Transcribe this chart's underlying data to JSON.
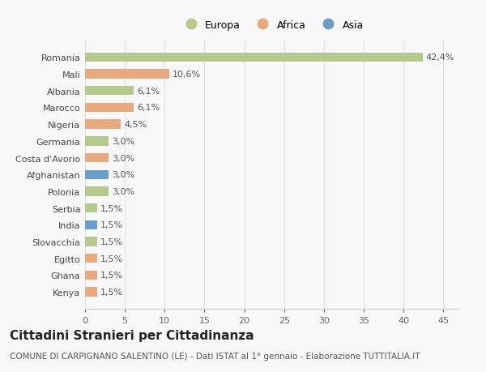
{
  "countries": [
    "Kenya",
    "Ghana",
    "Egitto",
    "Slovacchia",
    "India",
    "Serbia",
    "Polonia",
    "Afghanistan",
    "Costa d'Avorio",
    "Germania",
    "Nigeria",
    "Marocco",
    "Albania",
    "Mali",
    "Romania"
  ],
  "values": [
    1.5,
    1.5,
    1.5,
    1.5,
    1.5,
    1.5,
    3.0,
    3.0,
    3.0,
    3.0,
    4.5,
    6.1,
    6.1,
    10.6,
    42.4
  ],
  "labels": [
    "1,5%",
    "1,5%",
    "1,5%",
    "1,5%",
    "1,5%",
    "1,5%",
    "3,0%",
    "3,0%",
    "3,0%",
    "3,0%",
    "4,5%",
    "6,1%",
    "6,1%",
    "10,6%",
    "42,4%"
  ],
  "continents": [
    "Africa",
    "Africa",
    "Africa",
    "Europa",
    "Asia",
    "Europa",
    "Europa",
    "Asia",
    "Africa",
    "Europa",
    "Africa",
    "Africa",
    "Europa",
    "Africa",
    "Europa"
  ],
  "continent_colors": {
    "Europa": "#b5c98e",
    "Africa": "#e8a97e",
    "Asia": "#6a9ec9"
  },
  "legend_labels": [
    "Europa",
    "Africa",
    "Asia"
  ],
  "title": "Cittadini Stranieri per Cittadinanza",
  "subtitle": "COMUNE DI CARPIGNANO SALENTINO (LE) - Dati ISTAT al 1° gennaio - Elaborazione TUTTITALIA.IT",
  "xlim": [
    0,
    47
  ],
  "xticks": [
    0,
    5,
    10,
    15,
    20,
    25,
    30,
    35,
    40,
    45
  ],
  "bg_color": "#f8f8f8",
  "grid_color": "#e0e0e0",
  "bar_height": 0.55,
  "title_fontsize": 11,
  "subtitle_fontsize": 7.5,
  "axis_fontsize": 8,
  "label_fontsize": 8
}
